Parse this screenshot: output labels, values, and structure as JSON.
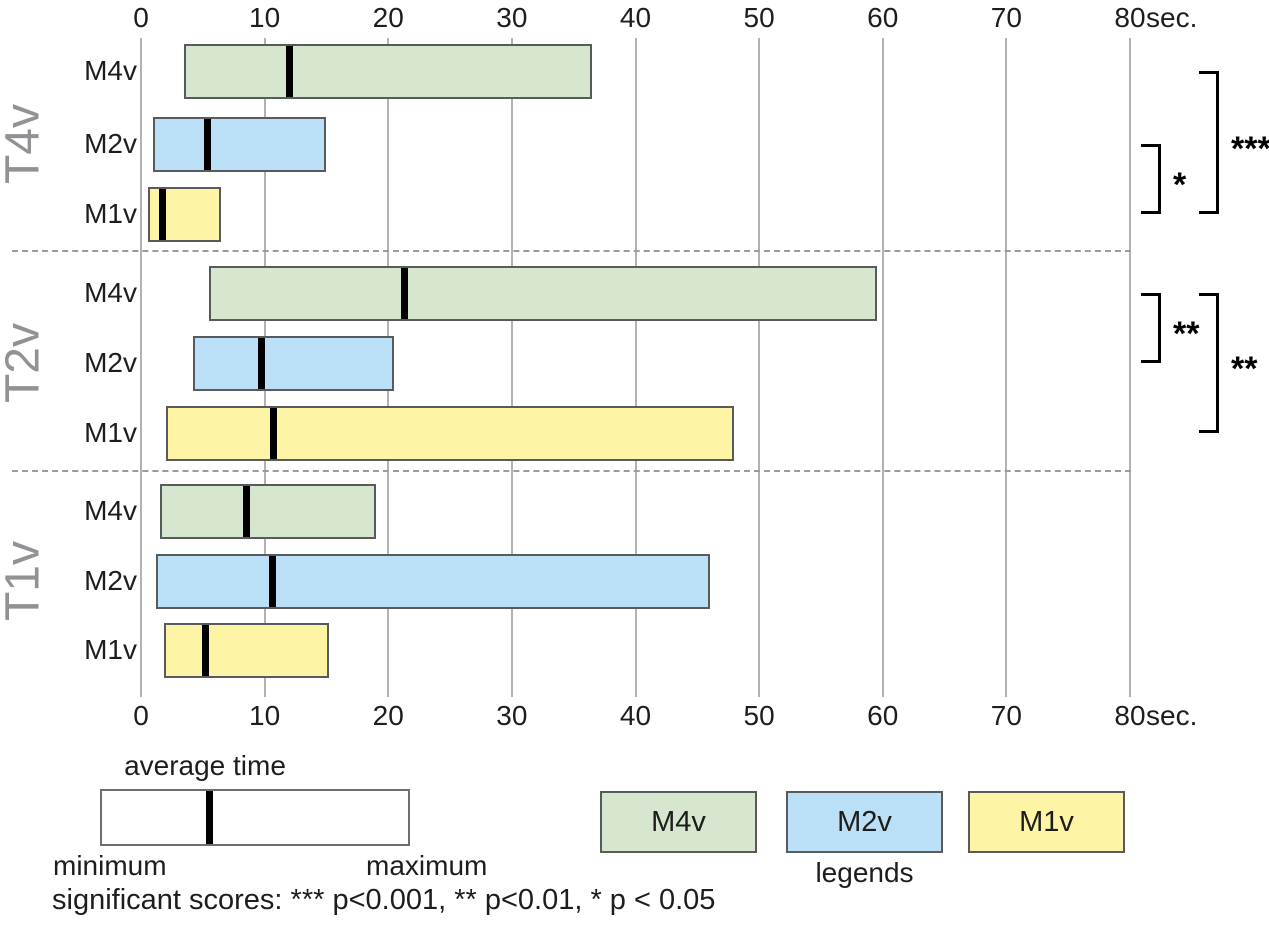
{
  "chart_data": {
    "type": "bar",
    "subtype": "horizontal-range-bars (min/avg/max)",
    "title": "",
    "axis": {
      "min": 0,
      "max": 80,
      "tick_step": 10,
      "ticks": [
        0,
        10,
        20,
        30,
        40,
        50,
        60,
        70,
        80
      ],
      "unit_label": "sec.",
      "grid": true
    },
    "value_encoding": {
      "bar_start": "minimum",
      "bar_end": "maximum",
      "marker": "average time"
    },
    "groups": [
      {
        "label": "T4v",
        "rows": [
          {
            "method": "M4v",
            "min": 3.5,
            "avg": 12.0,
            "max": 36.5
          },
          {
            "method": "M2v",
            "min": 1.0,
            "avg": 5.3,
            "max": 15.0
          },
          {
            "method": "M1v",
            "min": 0.6,
            "avg": 1.7,
            "max": 6.5
          }
        ]
      },
      {
        "label": "T2v",
        "rows": [
          {
            "method": "M4v",
            "min": 5.5,
            "avg": 21.3,
            "max": 59.5
          },
          {
            "method": "M2v",
            "min": 4.2,
            "avg": 9.7,
            "max": 20.5
          },
          {
            "method": "M1v",
            "min": 2.0,
            "avg": 10.7,
            "max": 48.0
          }
        ]
      },
      {
        "label": "T1v",
        "rows": [
          {
            "method": "M4v",
            "min": 1.5,
            "avg": 8.5,
            "max": 19.0
          },
          {
            "method": "M2v",
            "min": 1.2,
            "avg": 10.6,
            "max": 46.0
          },
          {
            "method": "M1v",
            "min": 1.9,
            "avg": 5.2,
            "max": 15.2
          }
        ]
      }
    ],
    "significance": [
      {
        "group": "T4v",
        "brackets": [
          {
            "between": [
              "M2v",
              "M1v"
            ],
            "stars": "*"
          },
          {
            "between": [
              "M4v",
              "M1v"
            ],
            "stars": "***"
          }
        ]
      },
      {
        "group": "T2v",
        "brackets": [
          {
            "between": [
              "M4v",
              "M2v"
            ],
            "stars": "**"
          },
          {
            "between": [
              "M4v",
              "M1v"
            ],
            "stars": "**"
          }
        ]
      }
    ],
    "colors": {
      "M4v": "#d6e6cf",
      "M2v": "#bbdff6",
      "M1v": "#fdf4a6",
      "grid": "#b2b2b2",
      "bar_border": "#595a5c",
      "group_label": "#909295",
      "marker": "#000000"
    },
    "legend": {
      "items": [
        "M4v",
        "M2v",
        "M1v"
      ],
      "caption": "legends",
      "example": {
        "title": "average time",
        "left_label": "minimum",
        "right_label": "maximum"
      }
    },
    "footnote": "significant scores: *** p<0.001, ** p<0.01, * p < 0.05"
  }
}
